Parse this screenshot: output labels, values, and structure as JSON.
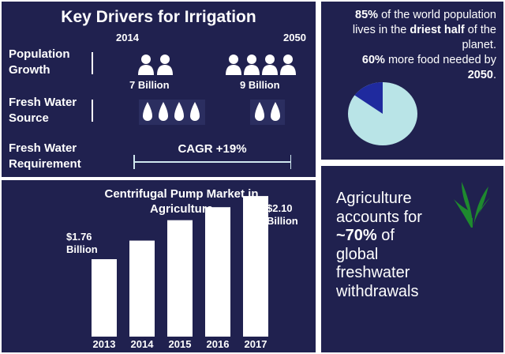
{
  "drivers": {
    "title": "Key Drivers for Irrigation",
    "year_start": "2014",
    "year_end": "2050",
    "rows": {
      "population": {
        "label_line1": "Population",
        "label_line2": "Growth",
        "value_start": "7 Billion",
        "value_end": "9 Billion",
        "icons_start": 2,
        "icons_end": 4,
        "icon": "person-icon"
      },
      "source": {
        "label_line1": "Fresh Water",
        "label_line2": "Source",
        "icons_start": 4,
        "icons_end": 2,
        "icon": "water-drop-icon"
      },
      "requirement": {
        "label_line1": "Fresh Water",
        "label_line2": "Requirement",
        "cagr": "CAGR +19%"
      }
    }
  },
  "chart_data": {
    "type": "bar",
    "title_line1": "Centrifugal Pump Market in",
    "title_line2": "Agriculture",
    "categories": [
      "2013",
      "2014",
      "2015",
      "2016",
      "2017"
    ],
    "values": [
      1.76,
      1.86,
      1.97,
      2.04,
      2.1
    ],
    "unit": "Billion",
    "labels": {
      "first_line1": "$1.76",
      "first_line2": "Billion",
      "last_line1": "$2.10",
      "last_line2": "Billion"
    },
    "bar_color": "#ffffff",
    "background": "#20214f",
    "grid": false,
    "legend": "none"
  },
  "stats": {
    "line1_bold": "85%",
    "line1_rest": " of the world population",
    "line2_pre": "lives in the ",
    "line2_bold": "driest half",
    "line2_post": " of the",
    "line3": "planet.",
    "line4_bold": "60%",
    "line4_rest": " more food needed by",
    "line5_bold": "2050",
    "line5_rest": ".",
    "pie": {
      "highlight_percent": 15,
      "highlight_color": "#1f2a9e",
      "rest_color": "#b9e4e7"
    }
  },
  "agriculture": {
    "line1": "Agriculture",
    "line2": "accounts for",
    "line3_bold": "~70%",
    "line3_rest": " of",
    "line4": "global",
    "line5": "freshwater",
    "line6": "withdrawals",
    "icon": "leaf-icon",
    "icon_color": "#1e8a2e"
  }
}
